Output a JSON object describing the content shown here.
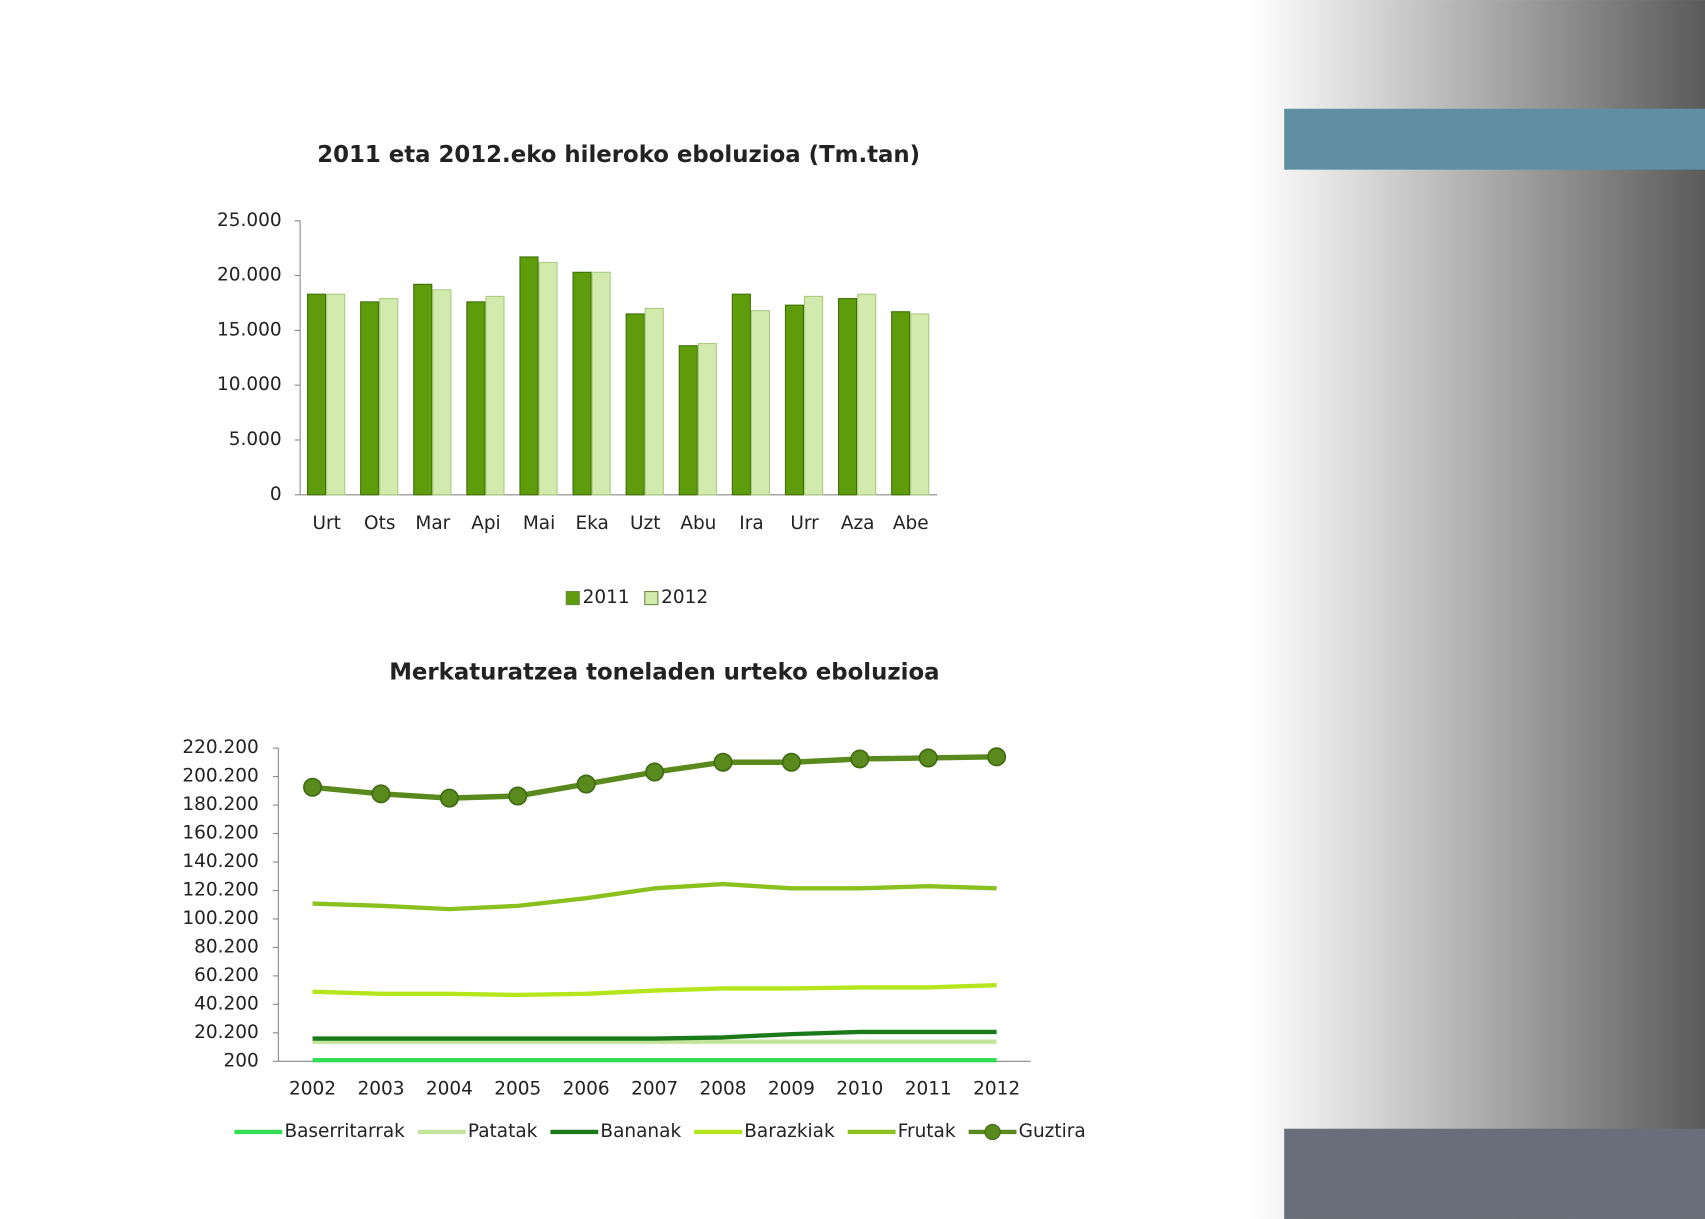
{
  "chart_data": [
    {
      "type": "bar",
      "title": "2011 eta 2012.eko hileroko eboluzioa (Tm.tan)",
      "categories": [
        "Urt",
        "Ots",
        "Mar",
        "Api",
        "Mai",
        "Eka",
        "Uzt",
        "Abu",
        "Ira",
        "Urr",
        "Aza",
        "Abe"
      ],
      "series": [
        {
          "name": "2011",
          "color": "#5e9c0c",
          "values": [
            18300,
            17600,
            19200,
            17600,
            21700,
            20300,
            16500,
            13600,
            18300,
            17300,
            17900,
            16700
          ]
        },
        {
          "name": "2012",
          "color": "#d2eaae",
          "values": [
            18300,
            17900,
            18700,
            18100,
            21200,
            20300,
            17000,
            13800,
            16800,
            18100,
            18300,
            16500
          ]
        }
      ],
      "ylim": [
        0,
        25000
      ],
      "yticks": [
        0,
        {
          "value": 5000,
          "label": "5.000"
        },
        {
          "value": 10000,
          "label": "10.000"
        },
        {
          "value": 15000,
          "label": "15.000"
        },
        {
          "value": 20000,
          "label": "20.000"
        },
        {
          "value": 25000,
          "label": "25.000"
        }
      ],
      "grid": false,
      "legend": "bottom"
    },
    {
      "type": "line",
      "title": "Merkaturatzea toneladen urteko eboluzioa",
      "categories": [
        "2002",
        "2003",
        "2004",
        "2005",
        "2006",
        "2007",
        "2008",
        "2009",
        "2010",
        "2011",
        "2012"
      ],
      "series": [
        {
          "name": "Baserritarrak",
          "color": "#33dd55",
          "values": [
            1000,
            1000,
            1000,
            1000,
            1000,
            1000,
            1000,
            1000,
            1000,
            1000,
            1000
          ]
        },
        {
          "name": "Patatak",
          "color": "#c3e49a",
          "values": [
            14000,
            14000,
            14000,
            14000,
            14000,
            14000,
            14000,
            14000,
            14000,
            14000,
            14000
          ]
        },
        {
          "name": "Bananak",
          "color": "#1a7a1a",
          "values": [
            16200,
            16200,
            16200,
            16200,
            16200,
            16200,
            17000,
            19300,
            20800,
            20800,
            20800
          ]
        },
        {
          "name": "Barazkiak",
          "color": "#b5e61d",
          "values": [
            49100,
            47600,
            47600,
            46800,
            47600,
            49900,
            51400,
            51400,
            52100,
            52100,
            53700
          ]
        },
        {
          "name": "Frutak",
          "color": "#8ac11e",
          "values": [
            111000,
            109400,
            107100,
            109400,
            114800,
            121700,
            124700,
            121700,
            121700,
            123200,
            121700
          ]
        },
        {
          "name": "Guztira",
          "color": "#5a8a1e",
          "markers": true,
          "values": [
            192700,
            188100,
            185100,
            186600,
            195000,
            203400,
            210300,
            210300,
            212600,
            213300,
            214100
          ]
        }
      ],
      "ylim": [
        200,
        220200
      ],
      "yticks": [
        200,
        {
          "value": 20200,
          "label": "20.200"
        },
        {
          "value": 40200,
          "label": "40.200"
        },
        {
          "value": 60200,
          "label": "60.200"
        },
        {
          "value": 80200,
          "label": "80.200"
        },
        {
          "value": 100200,
          "label": "100.200"
        },
        {
          "value": 120200,
          "label": "120.200"
        },
        {
          "value": 140200,
          "label": "140.200"
        },
        {
          "value": 160200,
          "label": "160.200"
        },
        {
          "value": 180200,
          "label": "180.200"
        },
        {
          "value": 200200,
          "label": "200.200"
        },
        {
          "value": 220200,
          "label": "220.200"
        }
      ],
      "grid": false,
      "legend": "bottom"
    }
  ]
}
